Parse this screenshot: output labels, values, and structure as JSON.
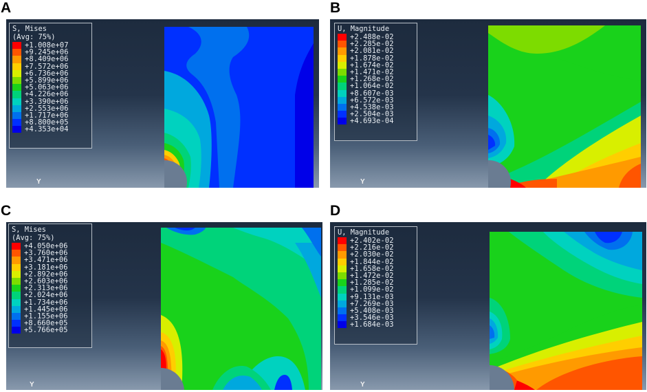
{
  "panels": [
    {
      "letter": "A",
      "legend_title": "S, Mises",
      "legend_subtitle": "(Avg: 75%)",
      "legend_values": [
        "+1.008e+07",
        "+9.245e+06",
        "+8.409e+06",
        "+7.572e+06",
        "+6.736e+06",
        "+5.899e+06",
        "+5.063e+06",
        "+4.226e+06",
        "+3.390e+06",
        "+2.553e+06",
        "+1.717e+06",
        "+8.800e+05",
        "+4.353e+04"
      ],
      "axis_label": "Y"
    },
    {
      "letter": "B",
      "legend_title": "U, Magnitude",
      "legend_subtitle": "",
      "legend_values": [
        "+2.488e-02",
        "+2.285e-02",
        "+2.081e-02",
        "+1.878e-02",
        "+1.674e-02",
        "+1.471e-02",
        "+1.268e-02",
        "+1.064e-02",
        "+8.607e-03",
        "+6.572e-03",
        "+4.538e-03",
        "+2.504e-03",
        "+4.693e-04"
      ],
      "axis_label": "Y"
    },
    {
      "letter": "C",
      "legend_title": "S, Mises",
      "legend_subtitle": "(Avg: 75%)",
      "legend_values": [
        "+4.050e+06",
        "+3.760e+06",
        "+3.471e+06",
        "+3.181e+06",
        "+2.892e+06",
        "+2.603e+06",
        "+2.313e+06",
        "+2.024e+06",
        "+1.734e+06",
        "+1.445e+06",
        "+1.155e+06",
        "+8.660e+05",
        "+5.766e+05"
      ],
      "axis_label": "Y"
    },
    {
      "letter": "D",
      "legend_title": "U, Magnitude",
      "legend_subtitle": "",
      "legend_values": [
        "+2.402e-02",
        "+2.216e-02",
        "+2.030e-02",
        "+1.844e-02",
        "+1.658e-02",
        "+1.472e-02",
        "+1.285e-02",
        "+1.099e-02",
        "+9.131e-03",
        "+7.269e-03",
        "+5.408e-03",
        "+3.546e-03",
        "+1.684e-03"
      ],
      "axis_label": "Y"
    }
  ],
  "contour_colors": [
    "#ff0000",
    "#ff5500",
    "#ff9a00",
    "#ffce00",
    "#d8ef00",
    "#7ddc00",
    "#19d21b",
    "#00d37a",
    "#00d2bf",
    "#00a8de",
    "#0070ee",
    "#0030ff",
    "#0000e8"
  ]
}
